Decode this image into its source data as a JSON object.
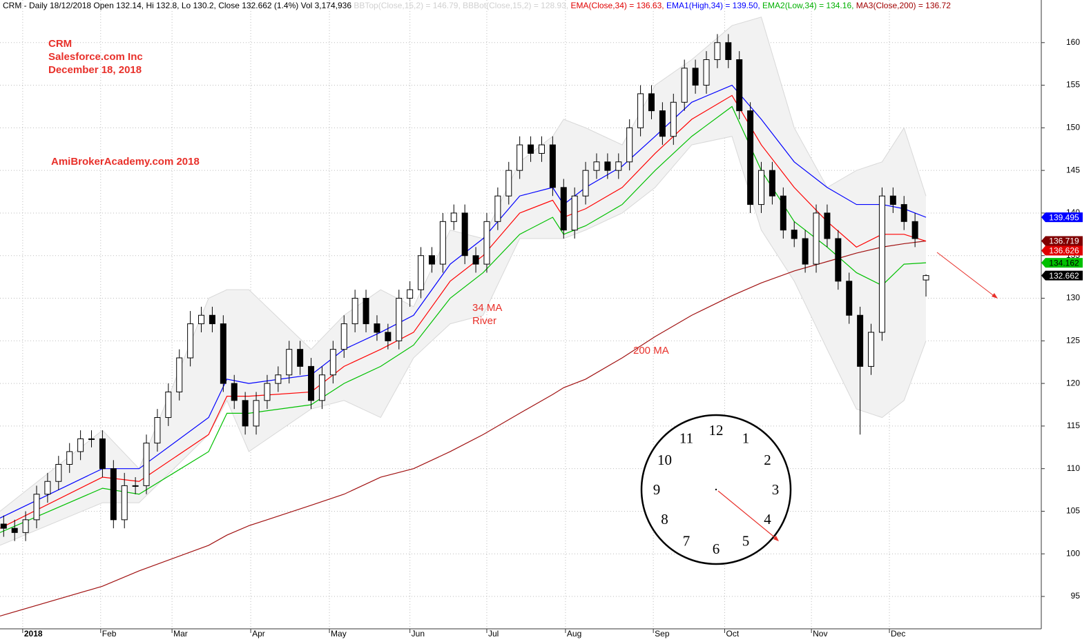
{
  "header": [
    {
      "text": "CRM - Daily 18/12/2018 Open 132.14, Hi 132.8, Lo 130.2, Close 132.662 (1.4%) Vol 3,174,936 ",
      "color": "#000000"
    },
    {
      "text": "BBTop(Close,15,2) = 146.79, BBBot(Close,15,2) = 128.93, ",
      "color": "#d0d0d0"
    },
    {
      "text": "EMA(Close,34) = 136.63, ",
      "color": "#e00000"
    },
    {
      "text": "EMA1(High,34) = 139.50, ",
      "color": "#0000ff"
    },
    {
      "text": "EMA2(Low,34) = 134.16, ",
      "color": "#00b000"
    },
    {
      "text": "MA3(Close,200) = 136.72",
      "color": "#a00000"
    }
  ],
  "annotations": {
    "ticker": "CRM",
    "company": "Salesforce.com Inc",
    "date": "December 18, 2018",
    "watermark": "AmiBrokerAcademy.com 2018",
    "river_line1": "34 MA",
    "river_line2": "River",
    "ma_label": "200 MA"
  },
  "clock": {
    "numbers": [
      12,
      1,
      2,
      3,
      4,
      5,
      6,
      7,
      8,
      9,
      10,
      11
    ]
  },
  "chart_data": {
    "type": "candlestick",
    "xlim": [
      0,
      284.5
    ],
    "ylim": [
      91.2,
      165
    ],
    "yticks": [
      95,
      100,
      105,
      110,
      115,
      120,
      125,
      130,
      135,
      140,
      145,
      150,
      155,
      160
    ],
    "xticks": [
      {
        "value": 6.2,
        "label": "2018"
      },
      {
        "value": 27.5,
        "label": "Feb"
      },
      {
        "value": 47,
        "label": "Mar"
      },
      {
        "value": 68.5,
        "label": "Apr"
      },
      {
        "value": 90,
        "label": "May"
      },
      {
        "value": 112,
        "label": "Jun"
      },
      {
        "value": 133,
        "label": "Jul"
      },
      {
        "value": 154.5,
        "label": "Aug"
      },
      {
        "value": 178.5,
        "label": "Sep"
      },
      {
        "value": 198,
        "label": "Oct"
      },
      {
        "value": 221.7,
        "label": "Nov"
      },
      {
        "value": 243,
        "label": "Dec"
      }
    ],
    "grid": true,
    "up_color": "#ffffff",
    "down_color": "#000000",
    "x": [
      1,
      4,
      7,
      10,
      13,
      16,
      19,
      22,
      25,
      28,
      31,
      34,
      37,
      40,
      43,
      46,
      49,
      52,
      55,
      58,
      61,
      64,
      67,
      70,
      73,
      76,
      79,
      82,
      85,
      88,
      91,
      94,
      97,
      100,
      103,
      106,
      109,
      112,
      115,
      118,
      121,
      124,
      127,
      130,
      133,
      136,
      139,
      142,
      145,
      148,
      151,
      154,
      157,
      160,
      163,
      166,
      169,
      172,
      175,
      178,
      181,
      184,
      187,
      190,
      193,
      196,
      199,
      202,
      205,
      208,
      211,
      214,
      217,
      220,
      223,
      226,
      229,
      232,
      235,
      238,
      241,
      244,
      247,
      250,
      253
    ],
    "open": [
      103.5,
      103,
      102.5,
      104,
      107,
      108.5,
      110.5,
      112,
      113.5,
      113.5,
      110,
      104,
      108,
      108,
      113,
      116,
      119,
      123,
      127,
      128,
      127,
      120,
      118,
      115,
      118,
      120,
      121,
      124,
      122,
      118,
      121,
      124,
      127,
      130,
      127,
      126,
      125,
      130,
      131,
      135,
      134,
      139,
      140,
      135,
      134,
      139,
      142,
      145,
      148,
      147,
      148,
      143,
      138,
      142,
      145,
      146,
      145,
      146,
      150,
      154,
      152,
      149,
      153,
      157,
      155,
      158,
      160,
      158,
      152,
      141,
      145,
      142,
      138,
      137,
      134,
      140,
      137,
      132,
      128,
      122,
      126,
      142,
      141,
      139,
      132.14
    ],
    "high": [
      104.5,
      104,
      105,
      108,
      109.5,
      111.5,
      113,
      114.5,
      114.5,
      114.5,
      111,
      109.5,
      109,
      114,
      117,
      120,
      124,
      128.5,
      129,
      129,
      128,
      121,
      119,
      119,
      121,
      122,
      125,
      125,
      123,
      122,
      125,
      128,
      131,
      131,
      128,
      127,
      131,
      132,
      136,
      136,
      140,
      141,
      141,
      136,
      140,
      143,
      146,
      149,
      149,
      149,
      149,
      144,
      143,
      146,
      147,
      147,
      147,
      151,
      155,
      155,
      153,
      154,
      158,
      158,
      159,
      161,
      161,
      159,
      153,
      146,
      146,
      143,
      139,
      138,
      141,
      141,
      138,
      133,
      129,
      127,
      143,
      143,
      142,
      140,
      132.8
    ],
    "low": [
      102,
      101.5,
      101.5,
      103,
      106,
      107.5,
      109.5,
      111,
      112.5,
      109,
      103,
      103,
      107,
      107,
      112,
      115,
      118,
      122,
      126,
      126,
      119,
      117,
      114,
      114,
      117,
      119,
      120,
      121,
      117,
      117,
      120,
      123,
      126,
      126,
      125,
      124,
      124,
      129,
      130,
      133,
      133,
      138,
      134,
      133,
      133,
      138,
      141,
      144,
      146,
      146,
      142,
      137,
      137,
      141,
      144,
      144,
      144,
      145,
      149,
      151,
      148,
      148,
      152,
      154,
      154,
      157,
      157,
      151,
      140,
      140,
      141,
      137,
      136,
      133,
      133,
      136,
      131,
      127,
      114,
      121,
      125,
      140,
      138,
      136,
      130.2
    ],
    "close": [
      103,
      102.5,
      104,
      107,
      108.5,
      110.5,
      112,
      113.5,
      113.5,
      110,
      104,
      108,
      108,
      113,
      116,
      119,
      123,
      127,
      128,
      127,
      120,
      118,
      115,
      118,
      120,
      121,
      124,
      122,
      118,
      121,
      124,
      127,
      130,
      127,
      126,
      125,
      130,
      131,
      135,
      134,
      139,
      140,
      135,
      134,
      139,
      142,
      145,
      148,
      147,
      148,
      143,
      138,
      142,
      145,
      146,
      145,
      146,
      150,
      154,
      152,
      149,
      153,
      157,
      155,
      158,
      160,
      158,
      152,
      141,
      145,
      142,
      138,
      137,
      134,
      140,
      137,
      132,
      128,
      122,
      126,
      142,
      141,
      139,
      137,
      132.662
    ],
    "line_x": [
      0,
      28,
      38,
      57,
      62,
      68,
      85,
      94,
      104,
      113,
      123,
      132,
      142,
      151,
      154,
      160,
      170,
      179,
      189,
      200,
      208,
      217,
      226,
      234,
      241,
      247,
      253
    ],
    "band": {
      "color": "#f2f2f2",
      "edge": "#d8d8d8",
      "upper": [
        105,
        114.5,
        110,
        130,
        131,
        131,
        124,
        128,
        131,
        129,
        138,
        137,
        146,
        149,
        151,
        150,
        148,
        155,
        158,
        162,
        163,
        150,
        143,
        145,
        146,
        150,
        142
      ],
      "lower": [
        101,
        106,
        106,
        114,
        118,
        112,
        117,
        118,
        116,
        123,
        127,
        128,
        137,
        137,
        137,
        138,
        140,
        143,
        148,
        149,
        138,
        132,
        124,
        117,
        116,
        118,
        125
      ]
    },
    "overlays": [
      {
        "color": "#a01010",
        "values": [
          92.7,
          96.2,
          98,
          101,
          102.2,
          103.3,
          105.7,
          107,
          109,
          110,
          112,
          114,
          116.5,
          118.7,
          119.5,
          120.5,
          123,
          125.5,
          128,
          130.3,
          131.8,
          133.2,
          134.3,
          135.3,
          136,
          136.4,
          136.72
        ]
      },
      {
        "color": "#0000ff",
        "values": [
          104.2,
          110,
          110,
          116,
          120.5,
          120,
          121,
          124,
          126,
          128,
          134,
          137,
          142,
          143,
          141,
          143,
          145.5,
          149,
          153,
          155,
          151,
          146,
          143,
          141,
          141,
          140.5,
          139.5
        ]
      },
      {
        "color": "#ff0000",
        "values": [
          103,
          109,
          108.5,
          114,
          118.5,
          118.5,
          119,
          122,
          124,
          126,
          132,
          135,
          140,
          141.5,
          139.5,
          140.5,
          143,
          147,
          151,
          153.8,
          148,
          143,
          139,
          136,
          137.5,
          137.5,
          136.7
        ]
      },
      {
        "color": "#00c000",
        "values": [
          102.5,
          107.7,
          107,
          112,
          116.5,
          116.5,
          117.5,
          120,
          122,
          124.5,
          130,
          133,
          137.5,
          139.5,
          137.5,
          138.5,
          141,
          145,
          149,
          152.5,
          145,
          139,
          136,
          133,
          131.5,
          134,
          134.16
        ]
      }
    ],
    "price_tags": [
      {
        "value": 139.495,
        "color": "#0000ff",
        "text_color": "#ffffff"
      },
      {
        "value": 136.719,
        "color": "#800000",
        "text_color": "#ffffff"
      },
      {
        "value": 136.626,
        "color": "#e00000",
        "text_color": "#ffffff"
      },
      {
        "value": 134.162,
        "color": "#00c000",
        "text_color": "#000000"
      },
      {
        "value": 132.662,
        "color": "#000000",
        "text_color": "#ffffff"
      }
    ]
  }
}
